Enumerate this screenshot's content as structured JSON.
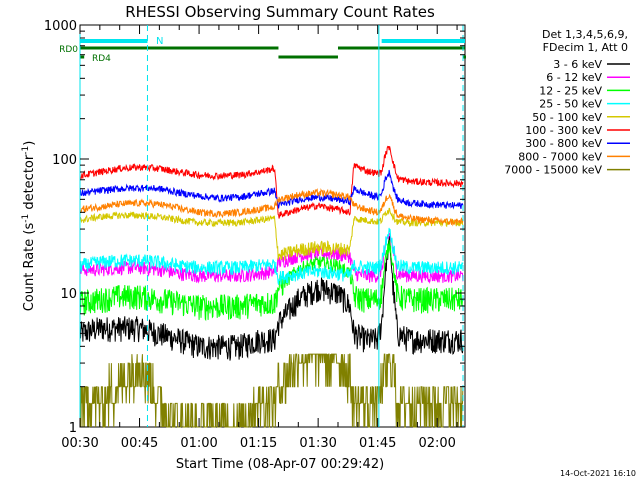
{
  "chart_data": {
    "type": "line",
    "title": "RHESSI Observing Summary Count Rates",
    "xlabel": "Start Time (08-Apr-07 00:29:42)",
    "ylabel_main": "Count Rate (s",
    "ylabel_sup1": "-1",
    "ylabel_mid": " detector",
    "ylabel_sup2": "-1",
    "ylabel_end": ")",
    "yscale": "log",
    "ylim": [
      1,
      1000
    ],
    "xlim_minutes": [
      30,
      127
    ],
    "x_ticks": [
      {
        "m": 30,
        "label": "00:30"
      },
      {
        "m": 45,
        "label": "00:45"
      },
      {
        "m": 60,
        "label": "01:00"
      },
      {
        "m": 75,
        "label": "01:15"
      },
      {
        "m": 90,
        "label": "01:30"
      },
      {
        "m": 105,
        "label": "01:45"
      },
      {
        "m": 120,
        "label": "02:00"
      }
    ],
    "y_ticks": [
      {
        "v": 1,
        "label": "1"
      },
      {
        "v": 10,
        "label": "10"
      },
      {
        "v": 100,
        "label": "100"
      },
      {
        "v": 1000,
        "label": "1000"
      }
    ],
    "legend_header": [
      "Det 1,3,4,5,6,9,",
      "FDecim 1, Att 0"
    ],
    "legend_position": "right",
    "series": [
      {
        "name": "3 - 6 keV",
        "color": "#000000",
        "x": [
          30,
          35,
          40,
          45,
          50,
          55,
          60,
          65,
          70,
          75,
          79,
          80,
          85,
          90,
          95,
          98,
          99,
          102,
          105,
          106,
          107,
          108,
          109,
          110,
          113,
          118,
          123,
          126
        ],
        "y": [
          5,
          5.5,
          5.5,
          5.5,
          5,
          4.5,
          4,
          4,
          4,
          4.5,
          4.5,
          6,
          9,
          11,
          10,
          8,
          5,
          4.5,
          4.5,
          6,
          15,
          25,
          10,
          5,
          4.5,
          4.5,
          4.5,
          4.5
        ]
      },
      {
        "name": "6 - 12 keV",
        "color": "#ff00ff",
        "x": [
          30,
          35,
          40,
          45,
          50,
          55,
          60,
          65,
          70,
          75,
          79,
          80,
          85,
          90,
          95,
          98,
          99,
          102,
          105,
          106,
          107,
          108,
          109,
          110,
          113,
          118,
          123,
          126
        ],
        "y": [
          15,
          15,
          15.5,
          15.5,
          15,
          14,
          13.5,
          13.5,
          13.5,
          14,
          14.5,
          17,
          19,
          20,
          19.5,
          19,
          14,
          13.5,
          13.5,
          15,
          22,
          28,
          20,
          14,
          13.5,
          13.5,
          13.5,
          13.5
        ]
      },
      {
        "name": "12 - 25 keV",
        "color": "#00ff00",
        "x": [
          30,
          35,
          40,
          45,
          50,
          55,
          60,
          65,
          70,
          75,
          79,
          80,
          85,
          90,
          95,
          98,
          99,
          102,
          105,
          106,
          107,
          108,
          109,
          110,
          113,
          118,
          123,
          126
        ],
        "y": [
          8.5,
          9,
          9.5,
          9.5,
          9,
          8.5,
          8,
          8,
          8,
          8.5,
          8.5,
          11,
          15,
          17,
          16,
          14,
          9.5,
          9,
          9,
          10,
          18,
          24,
          15,
          9.5,
          9,
          9,
          9,
          9
        ]
      },
      {
        "name": "25 - 50 keV",
        "color": "#00ffff",
        "x": [
          30,
          35,
          40,
          45,
          50,
          55,
          60,
          65,
          70,
          75,
          79,
          80,
          85,
          90,
          95,
          98,
          99,
          102,
          105,
          106,
          107,
          108,
          109,
          110,
          113,
          118,
          123,
          126
        ],
        "y": [
          16,
          17,
          17.5,
          17.5,
          17,
          16,
          15.5,
          15.5,
          15.5,
          16,
          16.5,
          13,
          14,
          14.5,
          14,
          13.5,
          16,
          15.5,
          15.5,
          17,
          24,
          30,
          21,
          16,
          15.5,
          15.5,
          15.5,
          15.5
        ]
      },
      {
        "name": "50 - 100 keV",
        "color": "#d4c800",
        "x": [
          30,
          35,
          40,
          45,
          50,
          55,
          60,
          65,
          70,
          75,
          79,
          80,
          85,
          90,
          95,
          98,
          99,
          102,
          105,
          106,
          107,
          108,
          109,
          110,
          113,
          118,
          123,
          126
        ],
        "y": [
          35,
          37,
          38,
          38,
          37,
          35,
          33.5,
          33.5,
          33.5,
          35,
          36,
          19,
          21,
          22,
          21.5,
          21,
          36,
          35,
          34,
          35,
          40,
          42,
          37,
          34,
          33.5,
          33.5,
          33.5,
          33.5
        ]
      },
      {
        "name": "100 - 300 keV",
        "color": "#ff0000",
        "x": [
          30,
          35,
          40,
          45,
          50,
          55,
          60,
          65,
          70,
          75,
          79,
          80,
          85,
          90,
          95,
          98,
          99,
          102,
          105,
          106,
          107,
          108,
          109,
          110,
          113,
          118,
          123,
          126
        ],
        "y": [
          75,
          80,
          85,
          87,
          85,
          80,
          76,
          75,
          76,
          80,
          85,
          38,
          42,
          45,
          42,
          40,
          90,
          82,
          78,
          80,
          110,
          125,
          92,
          72,
          68,
          67,
          66,
          66
        ]
      },
      {
        "name": "300 - 800 keV",
        "color": "#0000ff",
        "x": [
          30,
          35,
          40,
          45,
          50,
          55,
          60,
          65,
          70,
          75,
          79,
          80,
          85,
          90,
          95,
          98,
          99,
          102,
          105,
          106,
          107,
          108,
          109,
          110,
          113,
          118,
          123,
          126
        ],
        "y": [
          55,
          58,
          60,
          61,
          60,
          56,
          53,
          51,
          52,
          55,
          58,
          45,
          50,
          52,
          50,
          48,
          60,
          55,
          52,
          55,
          72,
          80,
          60,
          50,
          47,
          46,
          45,
          45
        ]
      },
      {
        "name": "800 - 7000 keV",
        "color": "#ff8000",
        "x": [
          30,
          35,
          40,
          45,
          50,
          55,
          60,
          65,
          70,
          75,
          79,
          80,
          85,
          90,
          95,
          98,
          99,
          102,
          105,
          106,
          107,
          108,
          109,
          110,
          113,
          118,
          123,
          126
        ],
        "y": [
          42,
          44,
          46,
          47,
          46,
          43,
          40,
          39,
          40,
          42,
          44,
          50,
          54,
          56,
          54,
          52,
          45,
          42,
          40,
          42,
          50,
          55,
          44,
          38,
          36,
          35,
          34,
          34
        ]
      },
      {
        "name": "7000 - 15000 keV",
        "color": "#808000",
        "x": [
          30,
          35,
          40,
          45,
          50,
          55,
          60,
          65,
          70,
          75,
          79,
          80,
          85,
          90,
          95,
          98,
          99,
          102,
          105,
          106,
          107,
          108,
          109,
          110,
          113,
          118,
          123,
          126
        ],
        "y": [
          1.5,
          1.5,
          2,
          3,
          1.5,
          1,
          1,
          1,
          1,
          1.5,
          1.5,
          2,
          3,
          3.5,
          3,
          2.5,
          1.5,
          1.5,
          1.5,
          2,
          2.5,
          3,
          2.5,
          1.5,
          1.5,
          1.5,
          1.5,
          1.5
        ]
      }
    ],
    "flag_bars": {
      "n_label": "N",
      "rd0_label": "RD0",
      "rd4_label": "RD4",
      "n_segments": [
        [
          30,
          47
        ],
        [
          106,
          127
        ]
      ],
      "rd0_segments": [
        [
          30,
          80
        ],
        [
          80,
          95
        ],
        [
          95,
          127
        ]
      ],
      "rd4_segments": [
        [
          30,
          30.8
        ],
        [
          126.6,
          127
        ]
      ]
    },
    "vertical_markers": {
      "solid_cyan_minutes": [
        30,
        105.3
      ],
      "dashed_cyan_minutes": [
        47,
        126.5
      ]
    },
    "timestamp": "14-Oct-2021 16:10"
  }
}
